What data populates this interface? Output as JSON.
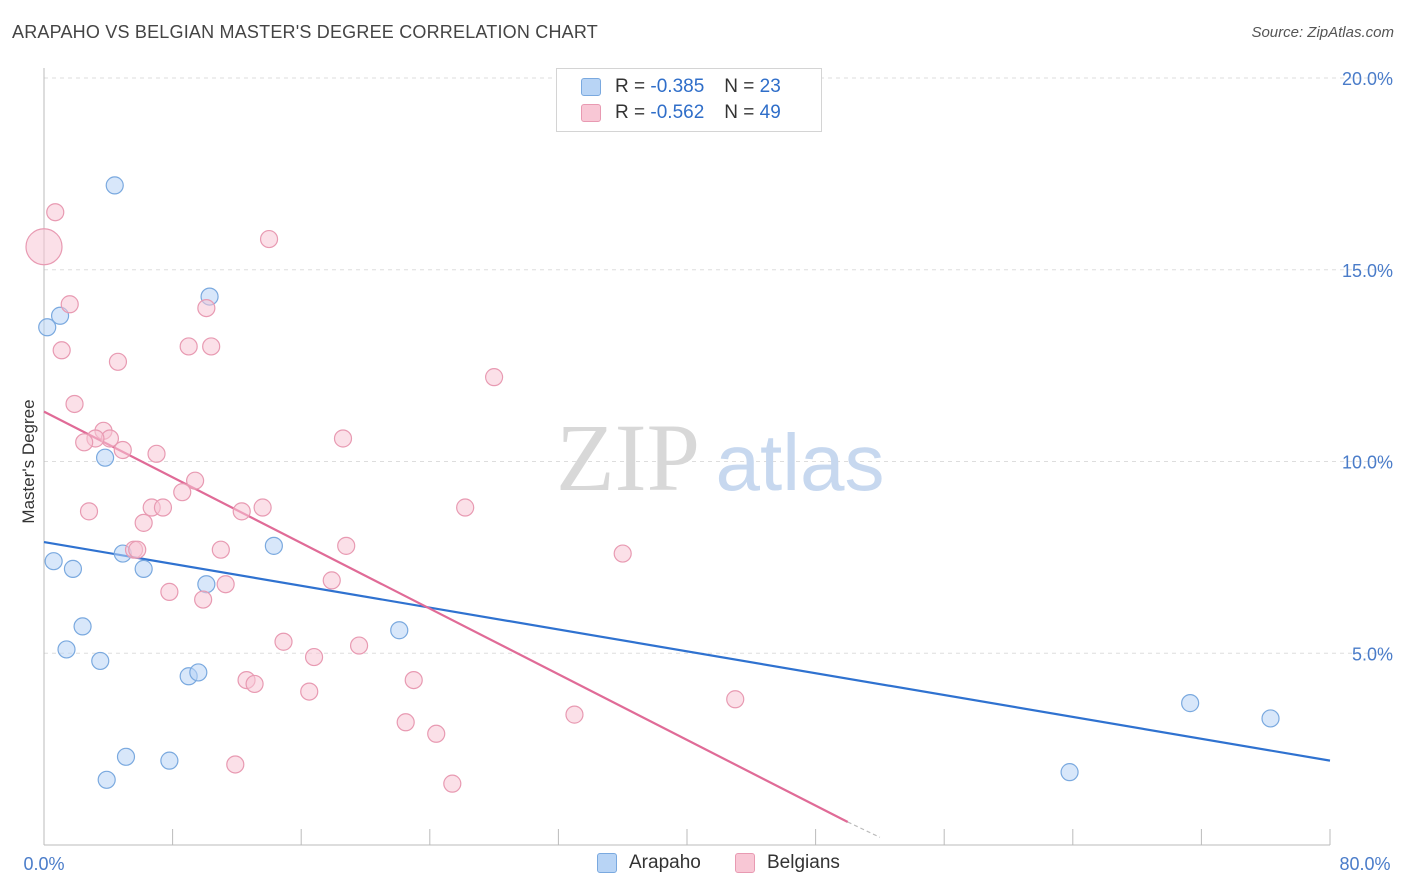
{
  "title": "ARAPAHO VS BELGIAN MASTER'S DEGREE CORRELATION CHART",
  "source": "Source: ZipAtlas.com",
  "watermark": {
    "zip": "ZIP",
    "atlas": "atlas"
  },
  "colors": {
    "arapaho_fill": "#b8d4f5",
    "arapaho_stroke": "#7aa9df",
    "arapaho_line": "#2f72d0",
    "belgian_fill": "#f8c7d5",
    "belgian_stroke": "#e89ab2",
    "belgian_line": "#e06b97",
    "tick_text": "#4a7cc9",
    "grid": "#dddddd"
  },
  "legend_top": [
    {
      "r_label": "R =",
      "r_value": "-0.385",
      "n_label": "N =",
      "n_value": "23"
    },
    {
      "r_label": "R =",
      "r_value": "-0.562",
      "n_label": "N =",
      "n_value": "49"
    }
  ],
  "legend_bottom": [
    "Arapaho",
    "Belgians"
  ],
  "chart_data": {
    "type": "scatter",
    "title": "ARAPAHO VS BELGIAN MASTER'S DEGREE CORRELATION CHART",
    "xlabel": "",
    "ylabel": "Master's Degree",
    "xlim": [
      0,
      80
    ],
    "ylim": [
      0,
      20
    ],
    "x_tick_labels": [
      "0.0%",
      "80.0%"
    ],
    "y_tick_labels": [
      "20.0%",
      "15.0%",
      "10.0%",
      "5.0%"
    ],
    "y_ticks": [
      20,
      15,
      10,
      5
    ],
    "x_minor_ticks": [
      0,
      8,
      16,
      24,
      32,
      40,
      48,
      56,
      64,
      72,
      80
    ],
    "grid": true,
    "series": [
      {
        "name": "Arapaho",
        "points": [
          [
            4.4,
            17.2
          ],
          [
            10.3,
            14.3
          ],
          [
            1.0,
            13.8
          ],
          [
            0.2,
            13.5
          ],
          [
            3.8,
            10.1
          ],
          [
            0.6,
            7.4
          ],
          [
            1.8,
            7.2
          ],
          [
            4.9,
            7.6
          ],
          [
            6.2,
            7.2
          ],
          [
            14.3,
            7.8
          ],
          [
            10.1,
            6.8
          ],
          [
            2.4,
            5.7
          ],
          [
            1.4,
            5.1
          ],
          [
            3.5,
            4.8
          ],
          [
            22.1,
            5.6
          ],
          [
            9.0,
            4.4
          ],
          [
            9.6,
            4.5
          ],
          [
            5.1,
            2.3
          ],
          [
            7.8,
            2.2
          ],
          [
            3.9,
            1.7
          ],
          [
            63.8,
            1.9
          ],
          [
            71.3,
            3.7
          ],
          [
            76.3,
            3.3
          ]
        ],
        "trend": {
          "x": [
            0,
            80
          ],
          "y": [
            7.9,
            2.2
          ]
        }
      },
      {
        "name": "Belgians",
        "points": [
          [
            0.7,
            16.5
          ],
          [
            0.0,
            15.6
          ],
          [
            14.0,
            15.8
          ],
          [
            1.6,
            14.1
          ],
          [
            10.1,
            14.0
          ],
          [
            1.1,
            12.9
          ],
          [
            9.0,
            13.0
          ],
          [
            10.4,
            13.0
          ],
          [
            4.6,
            12.6
          ],
          [
            28.0,
            12.2
          ],
          [
            1.9,
            11.5
          ],
          [
            3.7,
            10.8
          ],
          [
            4.1,
            10.6
          ],
          [
            3.2,
            10.6
          ],
          [
            2.5,
            10.5
          ],
          [
            4.9,
            10.3
          ],
          [
            7.0,
            10.2
          ],
          [
            18.6,
            10.6
          ],
          [
            9.4,
            9.5
          ],
          [
            8.6,
            9.2
          ],
          [
            6.7,
            8.8
          ],
          [
            7.4,
            8.8
          ],
          [
            12.3,
            8.7
          ],
          [
            13.6,
            8.8
          ],
          [
            2.8,
            8.7
          ],
          [
            26.2,
            8.8
          ],
          [
            6.2,
            8.4
          ],
          [
            5.6,
            7.7
          ],
          [
            5.8,
            7.7
          ],
          [
            11.0,
            7.7
          ],
          [
            18.8,
            7.8
          ],
          [
            36.0,
            7.6
          ],
          [
            17.9,
            6.9
          ],
          [
            11.3,
            6.8
          ],
          [
            7.8,
            6.6
          ],
          [
            9.9,
            6.4
          ],
          [
            14.9,
            5.3
          ],
          [
            19.6,
            5.2
          ],
          [
            16.8,
            4.9
          ],
          [
            12.6,
            4.3
          ],
          [
            13.1,
            4.2
          ],
          [
            23.0,
            4.3
          ],
          [
            16.5,
            4.0
          ],
          [
            43.0,
            3.8
          ],
          [
            33.0,
            3.4
          ],
          [
            22.5,
            3.2
          ],
          [
            24.4,
            2.9
          ],
          [
            11.9,
            2.1
          ],
          [
            25.4,
            1.6
          ]
        ],
        "trend": {
          "x": [
            0,
            50
          ],
          "y": [
            11.3,
            0.6
          ]
        },
        "trend_dashed": {
          "x": [
            50,
            52
          ],
          "y": [
            0.6,
            0.2
          ]
        }
      }
    ]
  }
}
